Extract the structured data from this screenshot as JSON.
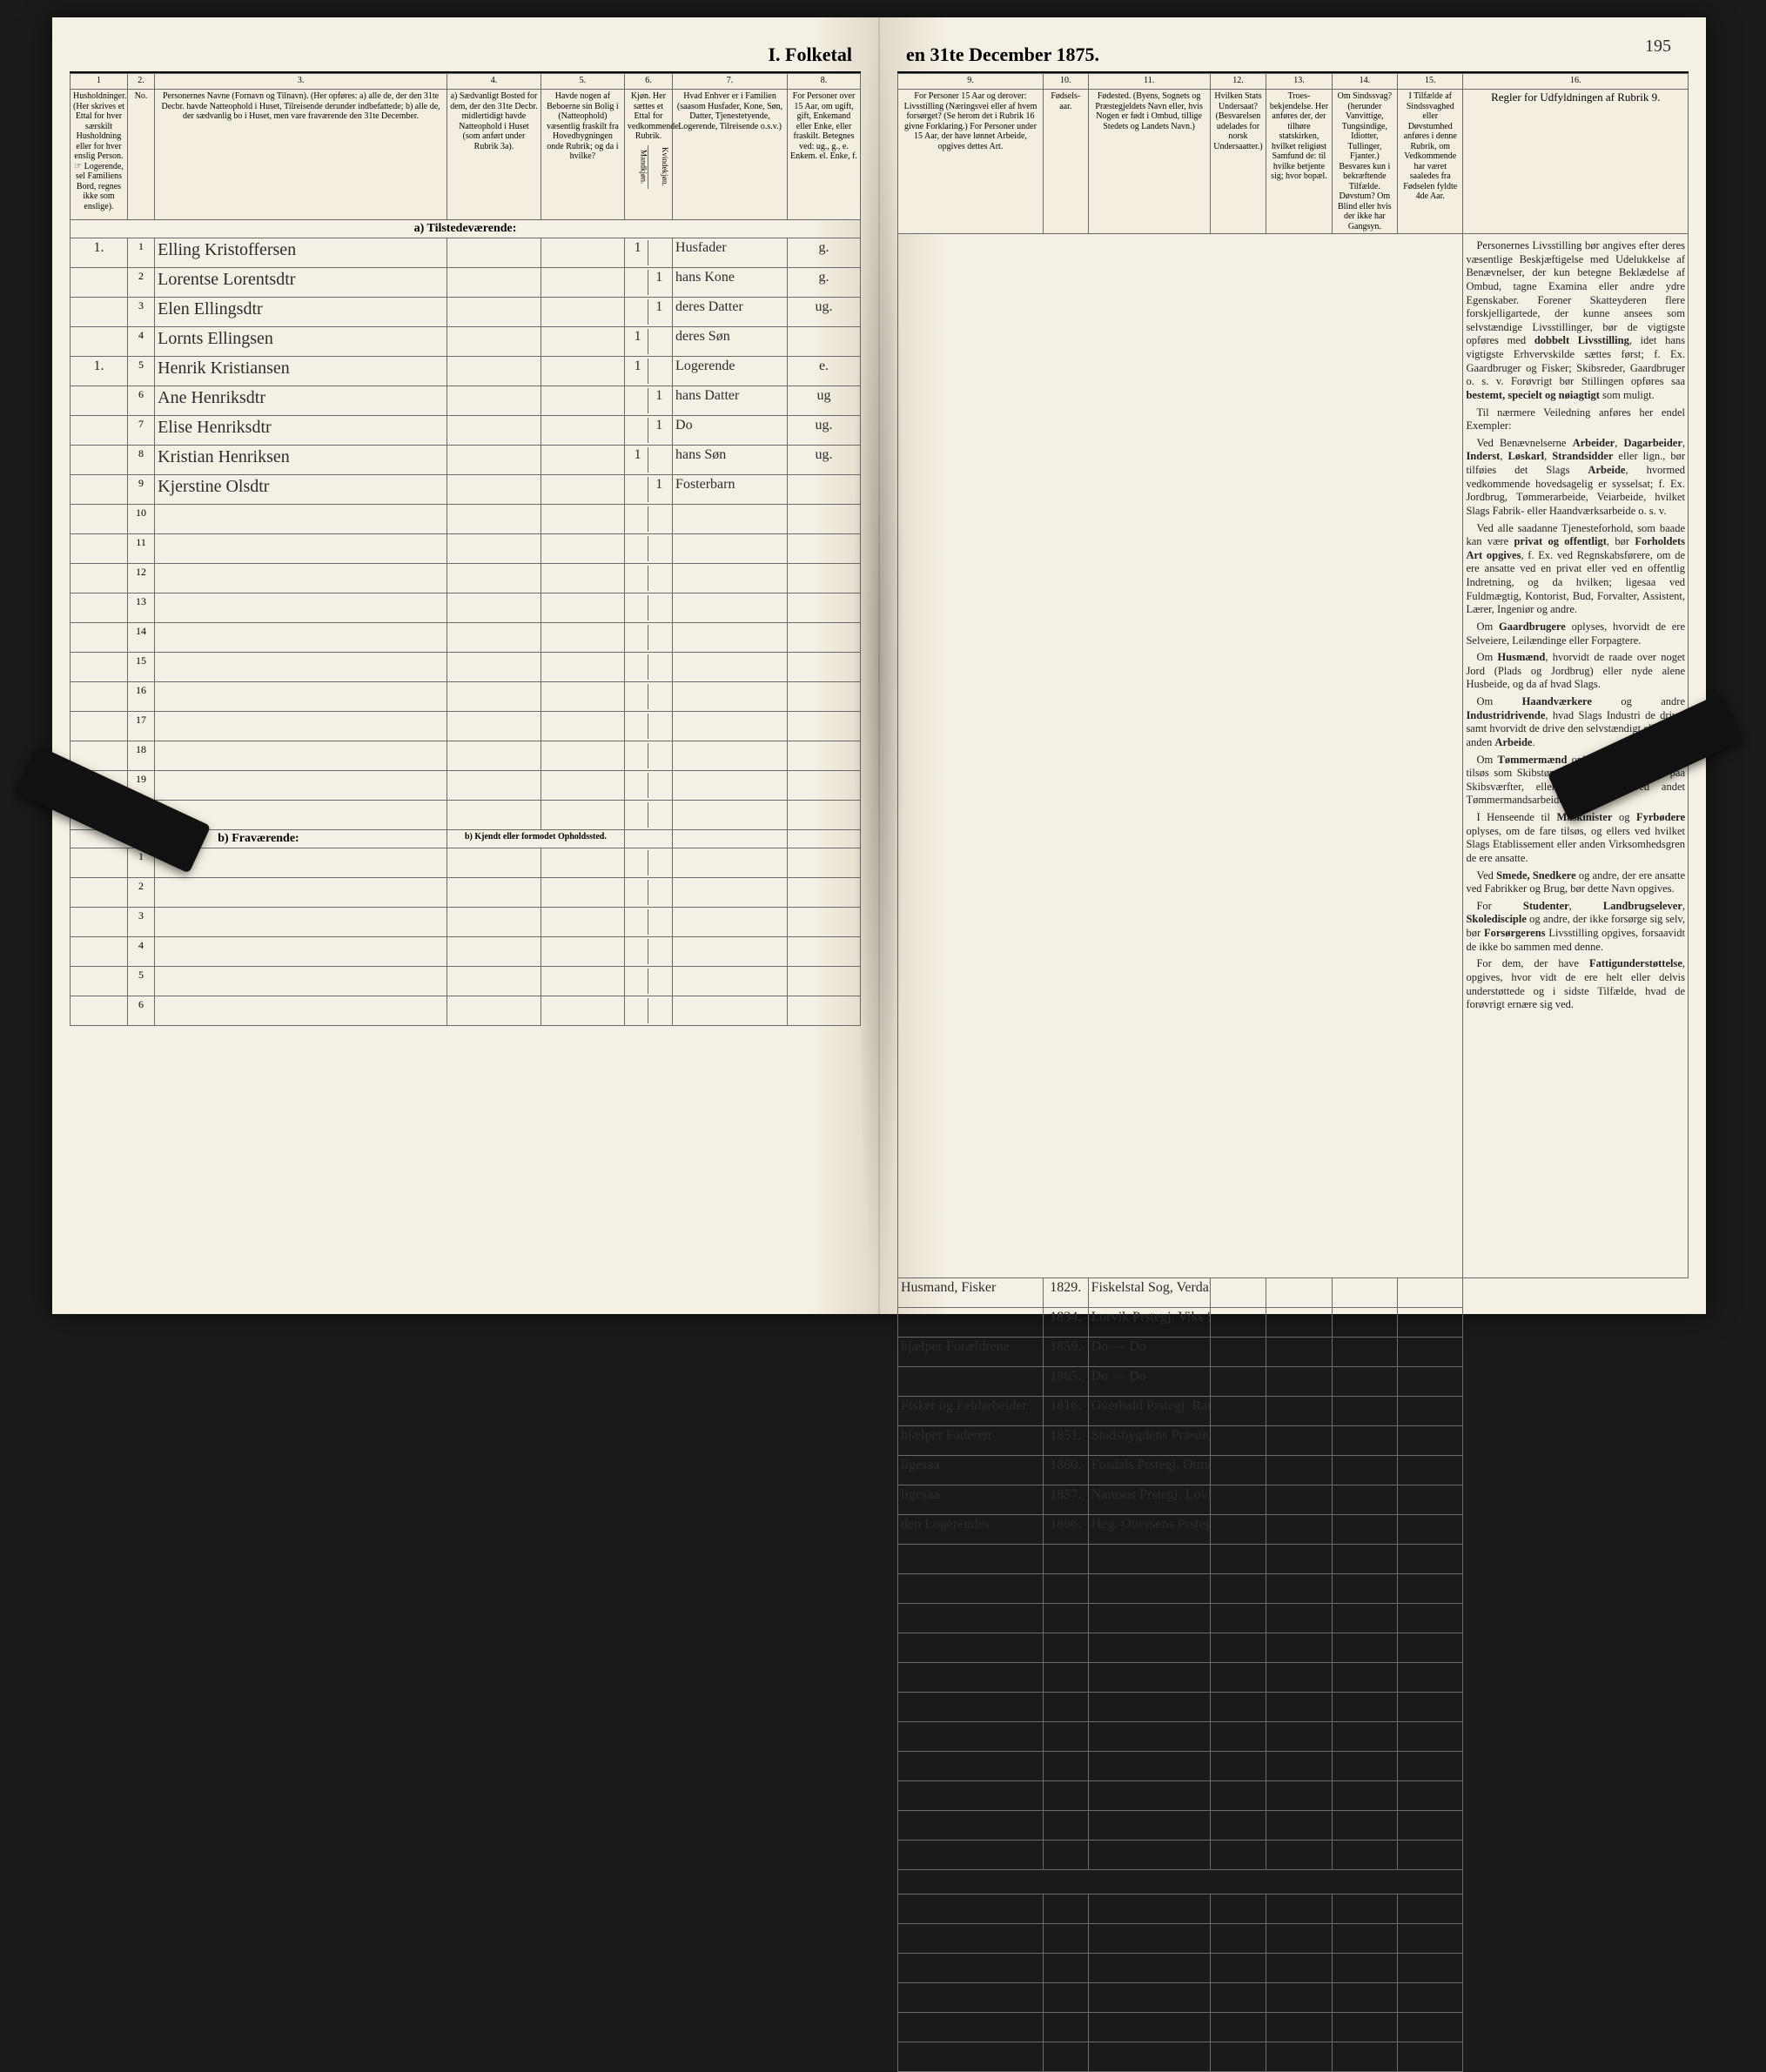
{
  "document": {
    "title_left": "I. Folketal",
    "title_right": "en 31te December 1875.",
    "page_number": "195"
  },
  "columns_left": {
    "c1": "1",
    "c2": "2.",
    "c3": "3.",
    "c4": "4.",
    "c5": "5.",
    "c6": "6.",
    "c7": "7.",
    "c8": "8."
  },
  "columns_right": {
    "c9": "9.",
    "c10": "10.",
    "c11": "11.",
    "c12": "12.",
    "c13": "13.",
    "c14": "14.",
    "c15": "15.",
    "c16": "16."
  },
  "headers_left": {
    "h1": "Husholdninger. (Her skrives et Ettal for hver særskilt Husholdning eller for hver enslig Person. ☞ Logerende, sel Familiens Bord, regnes ikke som enslige).",
    "h2": "No.",
    "h3": "Personernes Navne (Fornavn og Tilnavn). (Her opføres: a) alle de, der den 31te Decbr. havde Natteophold i Huset, Tilreisende derunder indbefattede; b) alle de, der sædvanlig bo i Huset, men vare fraværende den 31te December.",
    "h4": "a) Sædvanligt Bosted for dem, der den 31te Decbr. midlertidigt havde Natteophold i Huset (som anført under Rubrik 3a).",
    "h5": "Havde nogen af Beboerne sin Bolig i (Natteophold) væsentlig fraskilt fra Hovedbygningen onde Rubrik; og da i hvilke?",
    "h6": "Kjøn. Her sættes et Ettal for vedkommende Rubrik.",
    "h6a": "Mandkjøn.",
    "h6b": "Kvindekjøn.",
    "h7": "Hvad Enhver er i Familien (saasom Husfader, Kone, Søn, Datter, Tjenestetyende, Logerende, Tilreisende o.s.v.)",
    "h8": "For Personer over 15 Aar, om ugift, gift, Enkemand eller Enke, eller fraskilt. Betegnes ved: ug., g., e. Enkem. el. Enke, f."
  },
  "headers_right": {
    "h9": "For Personer 15 Aar og derover: Livsstilling (Næringsvei eller af hvem forsørget? (Se herom det i Rubrik 16 givne Forklaring.) For Personer under 15 Aar, der have lønnet Arbeide, opgives dettes Art.",
    "h10": "Fødsels-aar.",
    "h11": "Fødested. (Byens, Sognets og Præstegjeldets Navn eller, hvis Nogen er født i Ombud, tillige Stedets og Landets Navn.)",
    "h12": "Hvilken Stats Undersaat? (Besvarelsen udelades for norsk Undersaatter.)",
    "h13": "Troes-bekjendelse. Her anføres der, der tilhøre statskirken, hvilket religiøst Samfund de: til hvilke betjente sig; hvor bopæl.",
    "h14": "Om Sindssvag? (herunder Vanvittige, Tungsindige, Idiotter, Tullinger, Fjanter.) Besvares kun i bekræftende Tilfælde. Døvstum? Om Blind eller hvis der ikke har Gangsyn.",
    "h15": "I Tilfælde af Sindssvaghed eller Døvstumhed anføres i denne Rubrik, om Vedkommende har været saaledes fra Fødselen fyldte 4de Aar.",
    "h16_title": "Regler for Udfyldningen af Rubrik 9."
  },
  "section_a": "a) Tilstedeværende:",
  "section_b": "b) Fraværende:",
  "section_b_note": "b) Kjendt eller formodet Opholdssted.",
  "rows": [
    {
      "num": "1",
      "hh": "1.",
      "name": "Elling Kristoffersen",
      "c4": "",
      "c5": "",
      "c6a": "1",
      "c6b": "",
      "c7": "Husfader",
      "c8": "g.",
      "c9": "Husmand, Fisker",
      "c10": "1829.",
      "c11": "Fiskelstal Sog, Verdalens Prstegj.",
      "c12": "",
      "c13": "",
      "c14": "",
      "c15": ""
    },
    {
      "num": "2",
      "hh": "",
      "name": "Lorentse Lorentsdtr",
      "c4": "",
      "c5": "",
      "c6a": "",
      "c6b": "1",
      "c7": "hans Kone",
      "c8": "g.",
      "c9": "",
      "c10": "1834.",
      "c11": "Lorvik Prstegj. Viks Sogn",
      "c12": "",
      "c13": "",
      "c14": "",
      "c15": ""
    },
    {
      "num": "3",
      "hh": "",
      "name": "Elen Ellingsdtr",
      "c4": "",
      "c5": "",
      "c6a": "",
      "c6b": "1",
      "c7": "deres Datter",
      "c8": "ug.",
      "c9": "hjælper Forældrene",
      "c10": "1859.",
      "c11": "Do — Do",
      "c12": "",
      "c13": "",
      "c14": "",
      "c15": ""
    },
    {
      "num": "4",
      "hh": "",
      "name": "Lornts Ellingsen",
      "c4": "",
      "c5": "",
      "c6a": "1",
      "c6b": "",
      "c7": "deres Søn",
      "c8": "",
      "c9": "",
      "c10": "1865.",
      "c11": "Do — Do",
      "c12": "",
      "c13": "",
      "c14": "",
      "c15": ""
    },
    {
      "num": "5",
      "hh": "1.",
      "name": "Henrik Kristiansen",
      "c4": "",
      "c5": "",
      "c6a": "1",
      "c6b": "",
      "c7": "Logerende",
      "c8": "e.",
      "c9": "Fisker og Feldarbeider",
      "c10": "1816.",
      "c11": "Overhald Prstegj. Ranums Sogn",
      "c12": "",
      "c13": "",
      "c14": "",
      "c15": ""
    },
    {
      "num": "6",
      "hh": "",
      "name": "Ane Henriksdtr",
      "c4": "",
      "c5": "",
      "c6a": "",
      "c6b": "1",
      "c7": "hans Datter",
      "c8": "ug",
      "c9": "hjælper Faderen",
      "c10": "1851.",
      "c11": "Stadsbygdens Præste: De Sogn",
      "c12": "",
      "c13": "",
      "c14": "",
      "c15": ""
    },
    {
      "num": "7",
      "hh": "",
      "name": "Elise Henriksdtr",
      "c4": "",
      "c5": "",
      "c6a": "",
      "c6b": "1",
      "c7": "Do",
      "c8": "ug.",
      "c9": "ligesaa",
      "c10": "1860.",
      "c11": "Fosdals Prstegj. Otmes Sogn",
      "c12": "",
      "c13": "",
      "c14": "",
      "c15": ""
    },
    {
      "num": "8",
      "hh": "",
      "name": "Kristian Henriksen",
      "c4": "",
      "c5": "",
      "c6a": "1",
      "c6b": "",
      "c7": "hans Søn",
      "c8": "ug.",
      "c9": "ligesaa",
      "c10": "1857.",
      "c11": "Namsos Prstegj. Lovig Sogn",
      "c12": "",
      "c13": "",
      "c14": "",
      "c15": ""
    },
    {
      "num": "9",
      "hh": "",
      "name": "Kjerstine Olsdtr",
      "c4": "",
      "c5": "",
      "c6a": "",
      "c6b": "1",
      "c7": "Fosterbarn",
      "c8": "",
      "c9": "den Logerendes",
      "c10": "1866.",
      "c11": "Heg. Ottersens Prstegj. Verans Sogn",
      "c12": "",
      "c13": "",
      "c14": "",
      "c15": ""
    }
  ],
  "empty_rows_a": [
    "10",
    "11",
    "12",
    "13",
    "14",
    "15",
    "16",
    "17",
    "18",
    "19",
    "20"
  ],
  "empty_rows_b": [
    "1",
    "2",
    "3",
    "4",
    "5",
    "6"
  ],
  "rules_text": {
    "p1": "Personernes Livsstilling bør angives efter deres væsentlige Beskjæftigelse med Udelukkelse af Benævnelser, der kun betegne Beklædelse af Ombud, tagne Examina eller andre ydre Egenskaber. Forener Skatteyderen flere forskjelligartede, der kunne ansees som selvstændige Livsstillinger, bør de vigtigste opføres med dobbelt Livsstilling, idet hans vigtigste Erhvervskilde sættes først; f. Ex. Gaardbruger og Fisker; Skibsreder, Gaardbruger o. s. v. Forøvrigt bør Stillingen opføres saa bestemt, specielt og nøiagtigt som muligt.",
    "p2": "Til nærmere Veiledning anføres her endel Exempler:",
    "p3": "Ved Benævnelserne Arbeider, Dagarbeider, Inderst, Løskarl, Strandsidder eller lign., bør tilføies det Slags Arbeide, hvormed vedkommende hovedsagelig er sysselsat; f. Ex. Jordbrug, Tømmerarbeide, Veiarbeide, hvilket Slags Fabrik- eller Haandværksarbeide o. s. v.",
    "p4": "Ved alle saadanne Tjenesteforhold, som baade kan være privat og offentligt, bør Forholdets Art opgives, f. Ex. ved Regnskabsførere, om de ere ansatte ved en privat eller ved en offentlig Indretning, og da hvilken; ligesaa ved Fuldmægtig, Kontorist, Bud, Forvalter, Assistent, Lærer, Ingeniør og andre.",
    "p5": "Om Gaardbrugere oplyses, hvorvidt de ere Selveiere, Leilændinge eller Forpagtere.",
    "p6": "Om Husmænd, hvorvidt de raade over noget Jord (Plads og Jordbrug) eller nyde alene Husbeide, og da af hvad Slags.",
    "p7": "Om Haandværkere og andre Industridrivende, hvad Slags Industri de drive, samt hvorvidt de drive den selvstændigt eller ere i anden Arbeide.",
    "p8": "Om Tømmermænd oplyses, hvorvidt de fare tilsøs som Skibstømmermænd, eller arbeide paa Skibsværfter, eller beskjæftiges ved andet Tømmermandsarbeide.",
    "p9": "I Henseende til Maskinister og Fyrbødere oplyses, om de fare tilsøs, og ellers ved hvilket Slags Etablissement eller anden Virksomhedsgren de ere ansatte.",
    "p10": "Ved Smede, Snedkere og andre, der ere ansatte ved Fabrikker og Brug, bør dette Navn opgives.",
    "p11": "For Studenter, Landbrugselever, Skoledisciple og andre, der ikke forsørge sig selv, bør Forsørgerens Livsstilling opgives, forsaavidt de ikke bo sammen med denne.",
    "p12": "For dem, der have Fattigunderstøttelse, opgives, hvor vidt de ere helt eller delvis understøttede og i sidste Tilfælde, hvad de forøvrigt ernære sig ved."
  },
  "colors": {
    "paper": "#f5f0e4",
    "ink": "#2c2c2c",
    "border": "#6a6a6a",
    "background": "#1a1a1a"
  }
}
